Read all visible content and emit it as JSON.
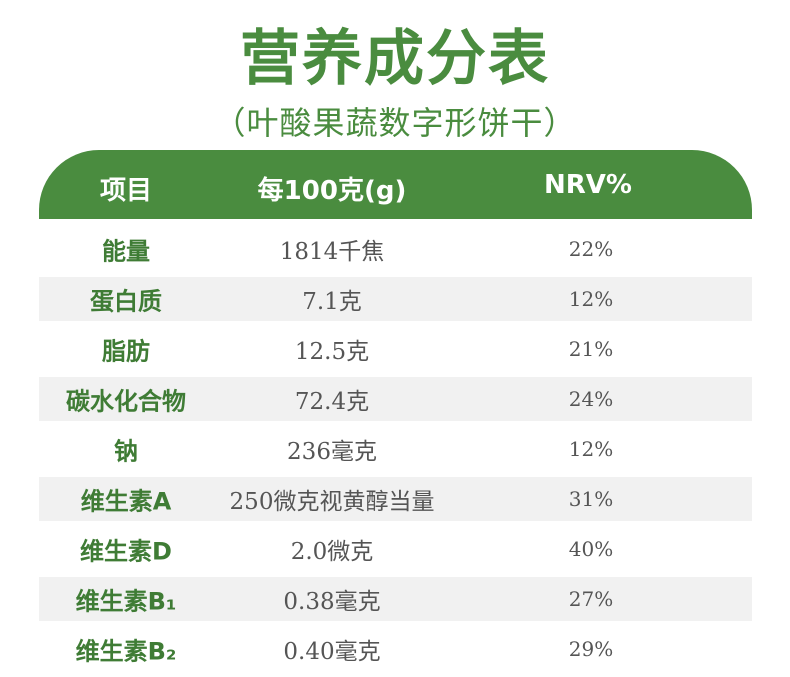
{
  "title": "营养成分表",
  "subtitle": "（叶酸果蔬数字形饼干）",
  "header": {
    "col1": "项目",
    "col2": "每100克(g)",
    "col3": "NRV%"
  },
  "rows": [
    {
      "item": "能量",
      "value": "1814千焦",
      "nrv": "22%"
    },
    {
      "item": "蛋白质",
      "value": "7.1克",
      "nrv": "12%"
    },
    {
      "item": "脂肪",
      "value": "12.5克",
      "nrv": "21%"
    },
    {
      "item": "碳水化合物",
      "value": "72.4克",
      "nrv": "24%"
    },
    {
      "item": "钠",
      "value": "236毫克",
      "nrv": "12%"
    },
    {
      "item": "维生素A",
      "value": "250微克视黄醇当量",
      "nrv": "31%"
    },
    {
      "item": "维生素D",
      "value": "2.0微克",
      "nrv": "40%"
    },
    {
      "item": "维生素B₁",
      "value": "0.38毫克",
      "nrv": "27%"
    },
    {
      "item": "维生素B₂",
      "value": "0.40毫克",
      "nrv": "29%"
    }
  ],
  "colors": {
    "primary_green": "#4a8c3f",
    "stripe_gray": "#f1f1f1",
    "value_text": "#555555"
  }
}
